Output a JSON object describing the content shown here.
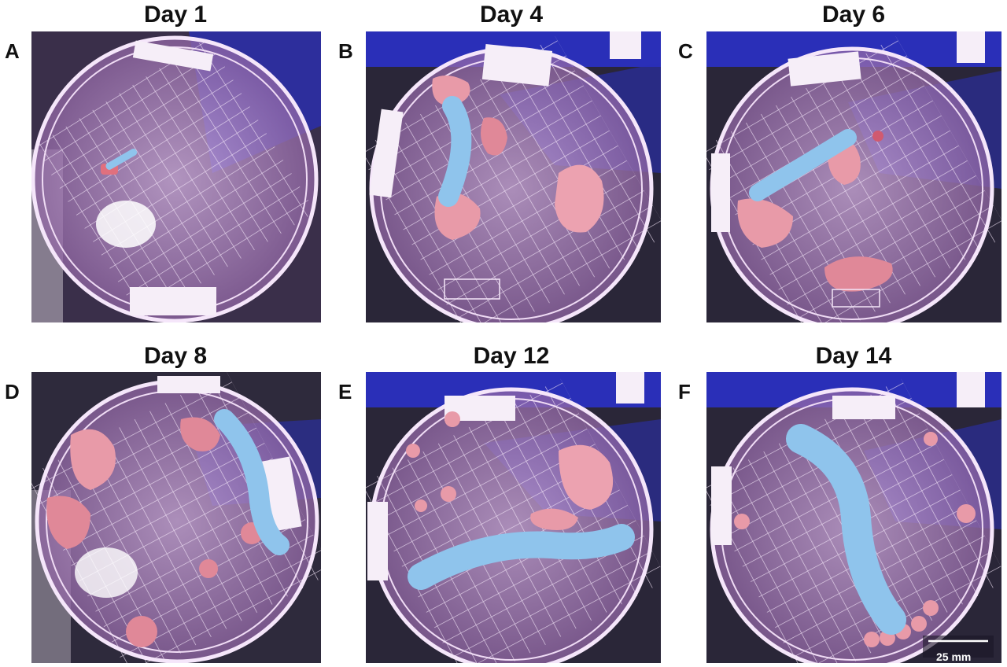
{
  "panels": [
    {
      "letter": "A",
      "title": "Day 1"
    },
    {
      "letter": "B",
      "title": "Day 4"
    },
    {
      "letter": "C",
      "title": "Day 6"
    },
    {
      "letter": "D",
      "title": "Day 8"
    },
    {
      "letter": "E",
      "title": "Day 12"
    },
    {
      "letter": "F",
      "title": "Day 14"
    }
  ],
  "scale_bar": {
    "label": "25 mm"
  },
  "colors": {
    "dish_glow": "#e9c8f0",
    "background_dark": "#1a1626",
    "blue_backdrop": "#2a2fb8",
    "larva": "#8fc4ec",
    "food": "#e89aa8"
  }
}
